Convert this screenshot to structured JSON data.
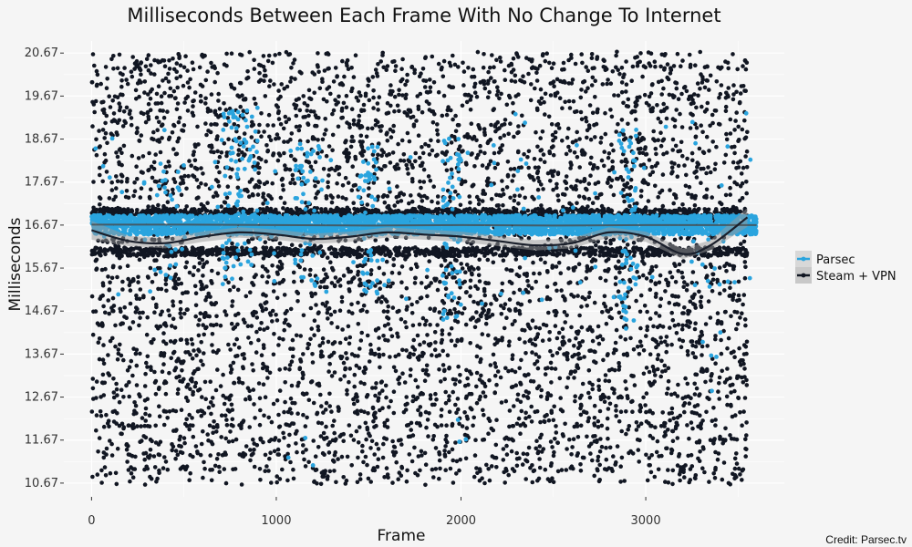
{
  "chart_data": {
    "type": "scatter",
    "title": "Milliseconds Between Each Frame With No Change To Internet",
    "xlabel": "Frame",
    "ylabel": "Milliseconds",
    "xlim": [
      -150,
      3750
    ],
    "ylim": [
      10.35,
      20.95
    ],
    "x_ticks": [
      0,
      1000,
      2000,
      3000
    ],
    "x_tick_labels": [
      "0",
      "1000",
      "2000",
      "3000"
    ],
    "y_ticks": [
      10.67,
      11.67,
      12.67,
      13.67,
      14.67,
      15.67,
      16.67,
      17.67,
      18.67,
      19.67,
      20.67
    ],
    "y_tick_labels": [
      "10.67",
      "11.67",
      "12.67",
      "13.67",
      "14.67",
      "15.67",
      "16.67",
      "17.67",
      "18.67",
      "19.67",
      "20.67"
    ],
    "grid": true,
    "legend_position": "right",
    "credit": "Credit: Parsec.tv",
    "series": [
      {
        "name": "Parsec",
        "color": "#2aa4de",
        "x_range": [
          0,
          3600
        ],
        "main_band": [
          16.45,
          16.9
        ],
        "trend": [
          [
            0,
            16.68
          ],
          [
            500,
            16.68
          ],
          [
            1000,
            16.67
          ],
          [
            1500,
            16.66
          ],
          [
            2000,
            16.67
          ],
          [
            2500,
            16.66
          ],
          [
            3000,
            16.67
          ],
          [
            3600,
            16.67
          ]
        ]
      },
      {
        "name": "Steam + VPN",
        "color": "#111622",
        "x_range": [
          0,
          3550
        ],
        "y_range": [
          10.67,
          20.67
        ],
        "upper_band": [
          16.85,
          17.05
        ],
        "lower_band": [
          15.95,
          16.15
        ],
        "trend": [
          [
            0,
            16.55
          ],
          [
            200,
            16.3
          ],
          [
            400,
            16.25
          ],
          [
            600,
            16.4
          ],
          [
            800,
            16.5
          ],
          [
            1000,
            16.45
          ],
          [
            1200,
            16.35
          ],
          [
            1400,
            16.4
          ],
          [
            1600,
            16.5
          ],
          [
            1800,
            16.45
          ],
          [
            2000,
            16.4
          ],
          [
            2200,
            16.3
          ],
          [
            2400,
            16.2
          ],
          [
            2600,
            16.25
          ],
          [
            2800,
            16.5
          ],
          [
            3000,
            16.4
          ],
          [
            3200,
            16.0
          ],
          [
            3350,
            16.2
          ],
          [
            3550,
            16.85
          ]
        ]
      }
    ]
  }
}
